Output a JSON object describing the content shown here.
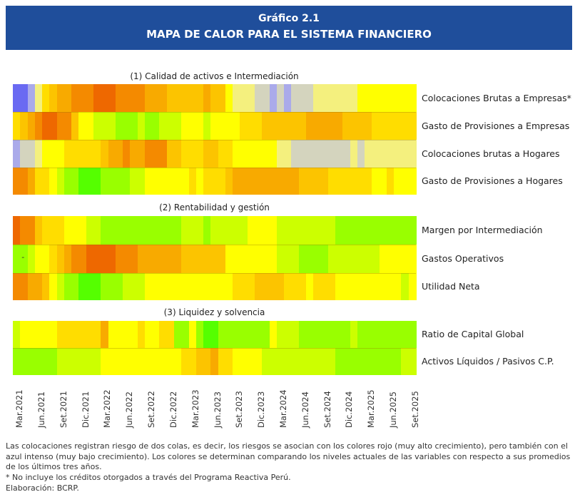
{
  "header": {
    "figure_number": "Gráfico 2.1",
    "title": "MAPA DE CALOR PARA EL SISTEMA FINANCIERO"
  },
  "chart_data": {
    "type": "heatmap",
    "title": "MAPA DE CALOR PARA EL SISTEMA FINANCIERO",
    "x_tick_labels": [
      "Mar.2021",
      "Jun.2021",
      "Set.2021",
      "Dic.2021",
      "Mar.2022",
      "Jun.2022",
      "Set.2022",
      "Dic.2022",
      "Mar.2023",
      "Jun.2023",
      "Set.2023",
      "Dic.2023",
      "Mar.2024",
      "Jun.2024",
      "Set.2024",
      "Dic.2024",
      "Mar.2025",
      "Jun.2025",
      "Set.2025"
    ],
    "x_range": [
      "Mar.2021",
      "Set.2025"
    ],
    "n_periods": 55,
    "color_scale": {
      "-4": "#6a6af2",
      "-3": "#aaaaea",
      "-2": "#d4d4be",
      "-1": "#f4f07e",
      "0": "#55ff00",
      "1": "#99ff00",
      "2": "#ccff00",
      "3": "#ffff00",
      "4": "#ffdd00",
      "5": "#fcc400",
      "6": "#f8aa00",
      "7": "#f48a00",
      "8": "#ee6800"
    },
    "sections": [
      {
        "title": "(1) Calidad de activos e Intermediación",
        "rows": [
          {
            "label": "Colocaciones Brutas a Empresas*",
            "values": [
              -4,
              -4,
              -3,
              -1,
              4,
              5,
              6,
              6,
              7,
              7,
              7,
              8,
              8,
              8,
              7,
              7,
              7,
              7,
              6,
              6,
              6,
              5,
              5,
              5,
              5,
              5,
              6,
              5,
              5,
              3,
              -1,
              -1,
              -1,
              -2,
              -2,
              -3,
              -2,
              -3,
              -2,
              -2,
              -2,
              -1,
              -1,
              -1,
              -1,
              -1,
              -1,
              3,
              3,
              3,
              3,
              3,
              3,
              3,
              3
            ]
          },
          {
            "label": "Gasto de Provisiones a Empresas",
            "values": [
              4,
              5,
              6,
              7,
              8,
              8,
              7,
              7,
              5,
              3,
              3,
              2,
              2,
              2,
              1,
              1,
              1,
              2,
              1,
              1,
              2,
              2,
              2,
              3,
              3,
              3,
              2,
              3,
              3,
              3,
              3,
              4,
              4,
              4,
              5,
              5,
              5,
              5,
              5,
              5,
              6,
              6,
              6,
              6,
              6,
              5,
              5,
              5,
              5,
              4,
              4,
              4,
              4,
              4,
              4
            ]
          },
          {
            "label": "Colocaciones brutas a Hogares",
            "values": [
              -3,
              -2,
              -2,
              -1,
              3,
              3,
              3,
              4,
              4,
              4,
              4,
              4,
              5,
              6,
              6,
              7,
              6,
              6,
              7,
              7,
              7,
              5,
              5,
              4,
              4,
              4,
              5,
              5,
              4,
              4,
              3,
              3,
              3,
              3,
              3,
              3,
              -1,
              -1,
              -2,
              -2,
              -2,
              -2,
              -2,
              -2,
              -2,
              -2,
              -1,
              -2,
              -1,
              -1,
              -1,
              -1,
              -1,
              -1,
              -1
            ]
          },
          {
            "label": "Gasto de Provisiones a Hogares",
            "values": [
              7,
              7,
              6,
              4,
              4,
              3,
              2,
              1,
              1,
              0,
              0,
              0,
              1,
              1,
              1,
              1,
              2,
              2,
              3,
              3,
              3,
              3,
              3,
              3,
              4,
              3,
              4,
              4,
              4,
              5,
              6,
              6,
              6,
              6,
              6,
              6,
              6,
              6,
              6,
              5,
              5,
              5,
              5,
              4,
              4,
              4,
              4,
              4,
              4,
              3,
              3,
              4,
              3,
              3,
              3
            ]
          }
        ]
      },
      {
        "title": "(2) Rentabilidad y gestión",
        "rows": [
          {
            "label": "Margen por Intermediación",
            "values": [
              8,
              7,
              7,
              5,
              4,
              4,
              4,
              3,
              3,
              3,
              2,
              2,
              1,
              1,
              1,
              1,
              1,
              1,
              1,
              1,
              1,
              1,
              1,
              2,
              2,
              2,
              1,
              2,
              2,
              2,
              2,
              2,
              3,
              3,
              3,
              3,
              2,
              2,
              2,
              2,
              2,
              2,
              2,
              2,
              1,
              1,
              1,
              1,
              1,
              1,
              1,
              1,
              1,
              1,
              1
            ]
          },
          {
            "label": "Gastos Operativos",
            "values": [
              1,
              1,
              2,
              3,
              3,
              4,
              5,
              6,
              7,
              7,
              8,
              8,
              8,
              8,
              7,
              7,
              7,
              6,
              6,
              6,
              6,
              6,
              6,
              5,
              5,
              5,
              5,
              5,
              5,
              3,
              3,
              3,
              3,
              3,
              3,
              3,
              2,
              2,
              2,
              1,
              1,
              1,
              1,
              2,
              2,
              2,
              2,
              2,
              2,
              2,
              3,
              3,
              3,
              3,
              3
            ]
          },
          {
            "label": "Utilidad Neta",
            "values": [
              7,
              7,
              6,
              6,
              5,
              3,
              2,
              1,
              1,
              0,
              0,
              0,
              1,
              1,
              1,
              2,
              2,
              2,
              3,
              3,
              3,
              3,
              3,
              3,
              3,
              3,
              3,
              3,
              3,
              3,
              4,
              4,
              4,
              5,
              5,
              5,
              5,
              4,
              4,
              4,
              3,
              4,
              4,
              4,
              3,
              3,
              3,
              3,
              3,
              3,
              3,
              3,
              3,
              2,
              3
            ]
          }
        ]
      },
      {
        "title": "(3) Liquidez y solvencia",
        "rows": [
          {
            "label": "Ratio de Capital Global",
            "values": [
              2,
              3,
              3,
              3,
              3,
              3,
              4,
              4,
              4,
              4,
              4,
              4,
              6,
              3,
              3,
              3,
              3,
              4,
              3,
              3,
              4,
              4,
              1,
              1,
              3,
              1,
              0,
              0,
              1,
              1,
              1,
              1,
              1,
              1,
              1,
              3,
              2,
              2,
              2,
              1,
              1,
              1,
              1,
              1,
              1,
              1,
              2,
              1,
              1,
              1,
              1,
              1,
              1,
              1,
              1
            ]
          },
          {
            "label": "Activos Líquidos / Pasivos C.P.",
            "values": [
              1,
              1,
              1,
              1,
              1,
              1,
              2,
              2,
              2,
              2,
              2,
              2,
              3,
              3,
              3,
              3,
              3,
              3,
              3,
              3,
              3,
              3,
              3,
              4,
              4,
              5,
              5,
              6,
              4,
              4,
              3,
              3,
              3,
              3,
              2,
              2,
              2,
              2,
              2,
              2,
              2,
              2,
              2,
              2,
              1,
              1,
              1,
              1,
              1,
              1,
              1,
              1,
              1,
              2,
              2
            ]
          }
        ]
      }
    ],
    "annotations": [
      {
        "text": "-",
        "section": 1,
        "row": 1,
        "period_index": 1
      }
    ]
  },
  "footer": {
    "note1": "Las colocaciones registran riesgo de dos colas, es decir, los riesgos se asocian con los colores rojo (muy alto crecimiento), pero también con el azul intenso (muy bajo crecimiento). Los colores se determinan comparando los niveles actuales de las variables con respecto a sus promedios de los últimos tres años.",
    "note2": "* No incluye los créditos otorgados a través del Programa Reactiva Perú.",
    "note3": "Elaboración: BCRP."
  }
}
